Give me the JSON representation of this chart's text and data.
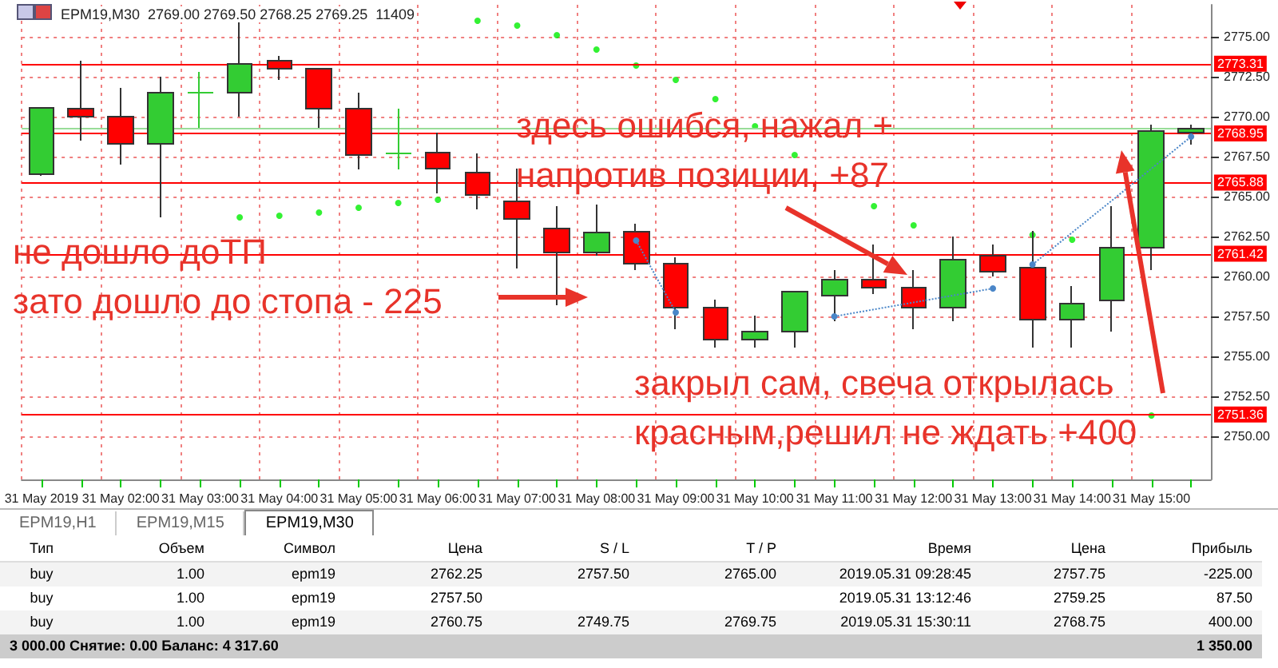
{
  "chart_data": {
    "type": "candlestick",
    "title": "EPM19,M30  2769.00 2769.50 2768.25 2769.25  11409",
    "categories": [
      "31 May 2019",
      null,
      "31 May 02:00",
      null,
      "31 May 03:00",
      null,
      "31 May 04:00",
      null,
      "31 May 05:00",
      null,
      "31 May 06:00",
      null,
      "31 May 07:00",
      null,
      "31 May 08:00",
      null,
      "31 May 09:00",
      null,
      "31 May 10:00",
      null,
      "31 May 11:00",
      null,
      "31 May 12:00",
      null,
      "31 May 13:00",
      null,
      "31 May 14:00",
      null,
      "31 May 15:00",
      null
    ],
    "series": [
      {
        "ohlc": [
          [
            2766.4,
            2770.6,
            2766.3,
            2770.55
          ],
          [
            2770.5,
            2773.5,
            2768.5,
            2770.0
          ],
          [
            2770.0,
            2771.8,
            2767.0,
            2768.3
          ],
          [
            2768.3,
            2772.5,
            2763.7,
            2771.5
          ],
          [
            2771.5,
            2772.8,
            2769.3,
            2771.5
          ],
          [
            2771.5,
            2776.8,
            2770.0,
            2773.3
          ],
          [
            2773.5,
            2773.8,
            2772.3,
            2773.0
          ],
          [
            2773.0,
            2773.0,
            2769.3,
            2770.5
          ],
          [
            2770.5,
            2771.5,
            2766.7,
            2767.6
          ],
          [
            2767.7,
            2770.5,
            2766.7,
            2767.7
          ],
          [
            2767.75,
            2769.0,
            2765.2,
            2766.75
          ],
          [
            2766.5,
            2767.7,
            2764.2,
            2765.1
          ],
          [
            2764.7,
            2766.75,
            2760.5,
            2763.6
          ],
          [
            2763.0,
            2764.4,
            2758.2,
            2761.5
          ],
          [
            2761.5,
            2764.5,
            2761.3,
            2762.75
          ],
          [
            2762.8,
            2763.3,
            2760.4,
            2760.8
          ],
          [
            2760.8,
            2761.2,
            2756.7,
            2758.05
          ],
          [
            2758.05,
            2758.55,
            2755.55,
            2756.05
          ],
          [
            2756.05,
            2757.55,
            2755.55,
            2756.55
          ],
          [
            2756.55,
            2759.1,
            2755.55,
            2759.05
          ],
          [
            2758.8,
            2760.4,
            2757.2,
            2759.8
          ],
          [
            2759.8,
            2762.0,
            2758.9,
            2759.3
          ],
          [
            2759.3,
            2760.4,
            2756.7,
            2758.05
          ],
          [
            2758.05,
            2762.5,
            2757.2,
            2761.05
          ],
          [
            2761.3,
            2762.0,
            2760.0,
            2760.3
          ],
          [
            2760.55,
            2762.85,
            2755.55,
            2757.3
          ],
          [
            2757.3,
            2759.4,
            2755.55,
            2758.3
          ],
          [
            2758.5,
            2764.4,
            2756.55,
            2761.8
          ],
          [
            2761.8,
            2769.5,
            2760.4,
            2769.1
          ],
          [
            2769.0,
            2769.5,
            2768.25,
            2769.25
          ]
        ],
        "colors": [
          "#33cc33",
          "#ff0000",
          "#ff0000",
          "#33cc33",
          "#33cc33",
          "#33cc33",
          "#ff0000",
          "#ff0000",
          "#ff0000",
          "#33cc33",
          "#ff0000",
          "#ff0000",
          "#ff0000",
          "#ff0000",
          "#33cc33",
          "#ff0000",
          "#ff0000",
          "#ff0000",
          "#33cc33",
          "#33cc33",
          "#33cc33",
          "#ff0000",
          "#ff0000",
          "#33cc33",
          "#ff0000",
          "#ff0000",
          "#33cc33",
          "#33cc33",
          "#33cc33",
          "#33cc33"
        ]
      },
      {
        "type": "scatter",
        "color": "#00ee00",
        "values": [
          null,
          null,
          null,
          null,
          null,
          2763.7,
          2763.8,
          2764.0,
          2764.3,
          2764.6,
          2764.8,
          2776.0,
          2775.7,
          2775.1,
          2774.2,
          2773.2,
          2772.3,
          2771.1,
          2769.4,
          2767.6,
          null,
          2764.4,
          2763.2,
          null,
          null,
          2762.6,
          2762.3,
          null,
          2751.3,
          null
        ]
      },
      {
        "type": "line",
        "color": "#4a86c8",
        "values": [
          null,
          null,
          null,
          null,
          null,
          null,
          null,
          null,
          null,
          null,
          null,
          null,
          null,
          null,
          null,
          2762.25,
          2757.75,
          null,
          null,
          null,
          null,
          null,
          null,
          null,
          null,
          null,
          null,
          null,
          null,
          null
        ]
      },
      {
        "type": "line",
        "color": "#4a86c8",
        "values": [
          null,
          null,
          null,
          null,
          null,
          null,
          null,
          null,
          null,
          null,
          null,
          null,
          null,
          null,
          null,
          null,
          null,
          null,
          null,
          null,
          2757.5,
          null,
          null,
          null,
          2759.25,
          null,
          null,
          null,
          null,
          null
        ]
      },
      {
        "type": "line",
        "color": "#4a86c8",
        "values": [
          null,
          null,
          null,
          null,
          null,
          null,
          null,
          null,
          null,
          null,
          null,
          null,
          null,
          null,
          null,
          null,
          null,
          null,
          null,
          null,
          null,
          null,
          null,
          null,
          null,
          2760.75,
          null,
          null,
          null,
          2768.75
        ]
      }
    ],
    "ylim": [
      2747.3,
      2777.0
    ],
    "yticks": [
      {
        "value": 2750,
        "label": "2750.00"
      },
      {
        "value": 2752.5,
        "label": "2752.50"
      },
      {
        "value": 2755,
        "label": "2755.00"
      },
      {
        "value": 2757.5,
        "label": "2757.50"
      },
      {
        "value": 2760,
        "label": "2760.00"
      },
      {
        "value": 2762.5,
        "label": "2762.50"
      },
      {
        "value": 2765,
        "label": "2765.00"
      },
      {
        "value": 2767.5,
        "label": "2767.50"
      },
      {
        "value": 2770,
        "label": "2770.00"
      },
      {
        "value": 2772.5,
        "label": "2772.50"
      },
      {
        "value": 2775,
        "label": "2775.00"
      }
    ],
    "ref_lines": [
      {
        "axis": "y",
        "value": 2773.31,
        "label": "2773.31",
        "color": "#ff0000"
      },
      {
        "axis": "y",
        "value": 2769.25,
        "color": "#99dd99"
      },
      {
        "axis": "y",
        "value": 2768.95,
        "label": "2768.95",
        "color": "#ff0000"
      },
      {
        "axis": "y",
        "value": 2765.88,
        "label": "2765.88",
        "color": "#ff0000"
      },
      {
        "axis": "y",
        "value": 2761.42,
        "label": "2761.42",
        "color": "#ff0000"
      },
      {
        "axis": "y",
        "value": 2751.36,
        "label": "2751.36",
        "color": "#ff0000"
      }
    ],
    "grid": true,
    "marker": "circle",
    "line_style": "dotted",
    "annotations": [
      "здесь ошибся, нажал +\nнапротив позиции, +87",
      "не дошло доТП\nзато дошло до стопа - 225",
      "закрыл сам, свеча открылась\nкрасным,решил не ждать +400",
      "EPM19,H1",
      "EPM19,M15",
      "EPM19,M30",
      "Тип",
      "Объем",
      "Символ",
      "Цена",
      "S / L",
      "T / P",
      "Время",
      "Цена",
      "Прибыль",
      "buy",
      "1.00",
      "epm19",
      "2762.25",
      "2757.50",
      "2765.00",
      "2019.05.31 09:28:45",
      "2757.75",
      "-225.00",
      "buy",
      "1.00",
      "epm19",
      "2757.50",
      "2019.05.31 13:12:46",
      "2759.25",
      "87.50",
      "buy",
      "1.00",
      "epm19",
      "2760.75",
      "2749.75",
      "2769.75",
      "2019.05.31 15:30:11",
      "2768.75",
      "400.00",
      "3 000.00 Снятие: 0.00 Баланс: 4 317.60",
      "1 350.00"
    ]
  }
}
